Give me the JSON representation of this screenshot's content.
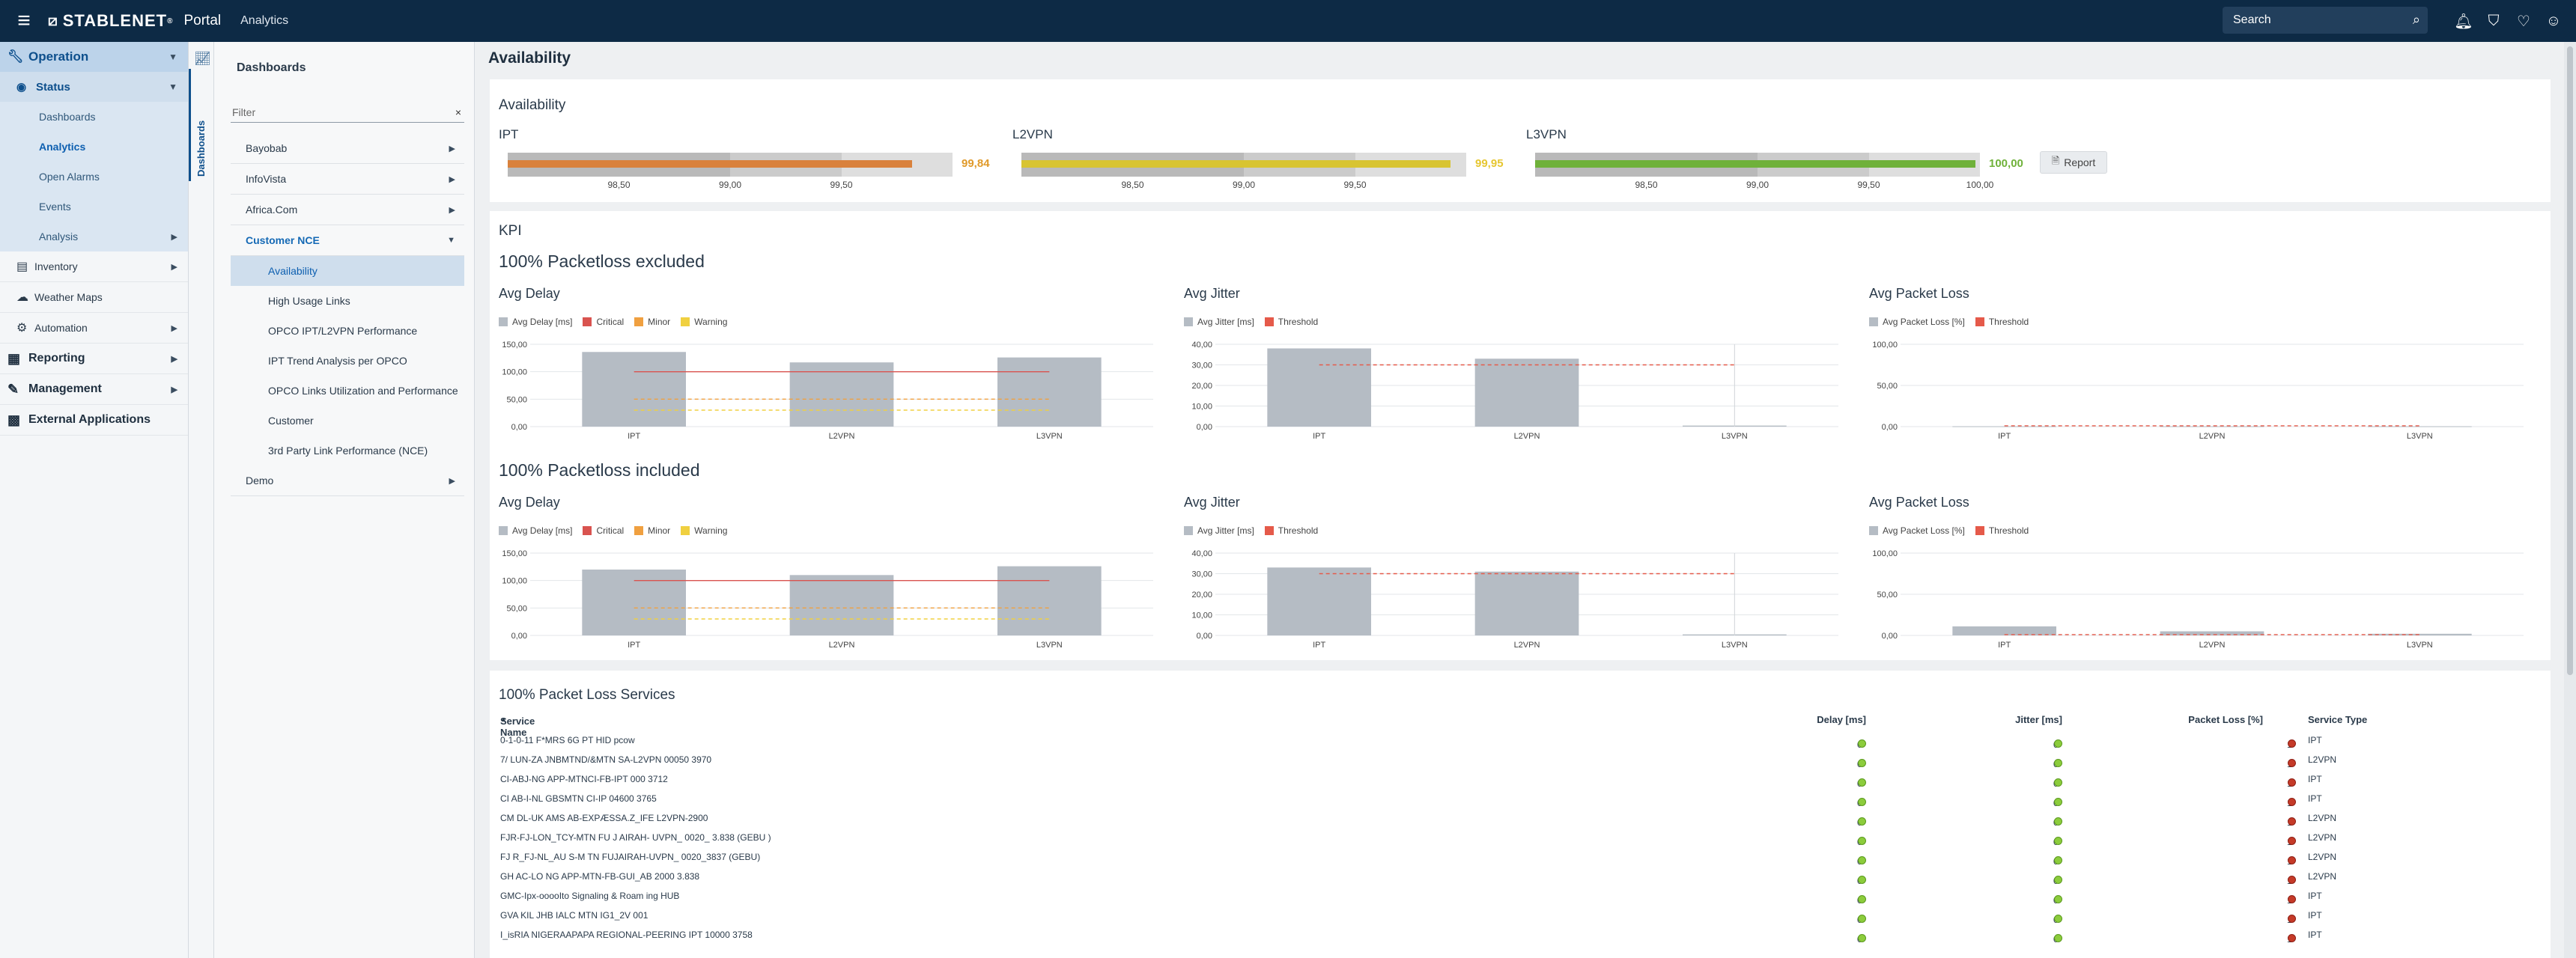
{
  "topbar": {
    "brand": "STABLENET",
    "portal": "Portal",
    "app": "Analytics",
    "search_placeholder": "Search"
  },
  "nav": {
    "operation": "Operation",
    "status": "Status",
    "status_items": [
      {
        "label": "Dashboards",
        "active": false
      },
      {
        "label": "Analytics",
        "active": true
      },
      {
        "label": "Open Alarms",
        "active": false
      },
      {
        "label": "Events",
        "active": false
      },
      {
        "label": "Analysis",
        "active": false
      }
    ],
    "inventory": "Inventory",
    "weather_maps": "Weather Maps",
    "automation": "Automation",
    "reporting": "Reporting",
    "management": "Management",
    "external": "External Applications"
  },
  "vtab": {
    "label": "Dashboards"
  },
  "dashboards": {
    "title": "Dashboards",
    "filter_placeholder": "Filter",
    "groups": [
      "Bayobab",
      "InfoVista",
      "Africa.Com",
      "Customer NCE"
    ],
    "customer_nce_items": [
      "Availability",
      "High Usage Links",
      "OPCO IPT/L2VPN Performance",
      "IPT Trend Analysis per OPCO",
      "OPCO Links Utilization and Performance",
      "Customer",
      "3rd Party Link Performance (NCE)"
    ],
    "demo": "Demo"
  },
  "page": {
    "title": "Availability"
  },
  "availability": {
    "title": "Availability",
    "report_label": "Report",
    "tick_labels": [
      "98,50",
      "99,00",
      "99,50"
    ],
    "tick_labels_l3": [
      "98,50",
      "99,00",
      "99,50",
      "100,00"
    ],
    "items": [
      {
        "label": "IPT",
        "value": 99.84,
        "value_text": "99,84",
        "color": "#d9813c",
        "text_color": "#e09a2a"
      },
      {
        "label": "L2VPN",
        "value": 99.95,
        "value_text": "99,95",
        "color": "#d8c432",
        "text_color": "#e6c630"
      },
      {
        "label": "L3VPN",
        "value": 100.0,
        "value_text": "100,00",
        "color": "#6fb13a",
        "text_color": "#6fb13a"
      }
    ]
  },
  "kpi": {
    "title": "KPI",
    "excluded": "100% Packetloss excluded",
    "included": "100% Packetloss included",
    "delay_title": "Avg Delay",
    "jitter_title": "Avg Jitter",
    "loss_title": "Avg Packet Loss",
    "delay_legend": [
      "Avg Delay [ms]",
      "Critical",
      "Minor",
      "Warning"
    ],
    "jitter_legend": [
      "Avg Jitter [ms]",
      "Threshold"
    ],
    "loss_legend": [
      "Avg Packet Loss [%]",
      "Threshold"
    ],
    "colors": {
      "bar": "#b5bcc4",
      "critical": "#d9534f",
      "minor": "#f0a040",
      "warning": "#f0d040",
      "threshold": "#e55a4a"
    }
  },
  "chart_data": [
    {
      "type": "bar",
      "title": "Avg Delay",
      "group": "100% Packetloss excluded",
      "categories": [
        "IPT",
        "L2VPN",
        "L3VPN"
      ],
      "values": [
        136,
        117,
        126
      ],
      "thresholds": {
        "Critical": 100,
        "Minor": 50,
        "Warning": 30
      },
      "ylim": [
        0,
        150
      ],
      "yticks": [
        "0,00",
        "50,00",
        "100,00",
        "150,00"
      ]
    },
    {
      "type": "bar",
      "title": "Avg Jitter",
      "group": "100% Packetloss excluded",
      "categories": [
        "IPT",
        "L2VPN",
        "L3VPN"
      ],
      "values": [
        38,
        33,
        0.5
      ],
      "thresholds": {
        "Threshold": 30
      },
      "ylim": [
        0,
        40
      ],
      "yticks": [
        "0,00",
        "10,00",
        "20,00",
        "30,00",
        "40,00"
      ]
    },
    {
      "type": "bar",
      "title": "Avg Packet Loss",
      "group": "100% Packetloss excluded",
      "categories": [
        "IPT",
        "L2VPN",
        "L3VPN"
      ],
      "values": [
        0.4,
        0.4,
        0.4
      ],
      "thresholds": {
        "Threshold": 1
      },
      "ylim": [
        0,
        100
      ],
      "yticks": [
        "0,00",
        "50,00",
        "100,00"
      ]
    },
    {
      "type": "bar",
      "title": "Avg Delay",
      "group": "100% Packetloss included",
      "categories": [
        "IPT",
        "L2VPN",
        "L3VPN"
      ],
      "values": [
        120,
        110,
        126
      ],
      "thresholds": {
        "Critical": 100,
        "Minor": 50,
        "Warning": 30
      },
      "ylim": [
        0,
        150
      ],
      "yticks": [
        "0,00",
        "50,00",
        "100,00",
        "150,00"
      ]
    },
    {
      "type": "bar",
      "title": "Avg Jitter",
      "group": "100% Packetloss included",
      "categories": [
        "IPT",
        "L2VPN",
        "L3VPN"
      ],
      "values": [
        33,
        31,
        0.5
      ],
      "thresholds": {
        "Threshold": 30
      },
      "ylim": [
        0,
        40
      ],
      "yticks": [
        "0,00",
        "10,00",
        "20,00",
        "30,00",
        "40,00"
      ]
    },
    {
      "type": "bar",
      "title": "Avg Packet Loss",
      "group": "100% Packetloss included",
      "categories": [
        "IPT",
        "L2VPN",
        "L3VPN"
      ],
      "values": [
        11,
        5,
        2
      ],
      "thresholds": {
        "Threshold": 1
      },
      "ylim": [
        0,
        100
      ],
      "yticks": [
        "0,00",
        "50,00",
        "100,00"
      ]
    }
  ],
  "services": {
    "title": "100% Packet Loss Services",
    "columns": [
      "Service Name",
      "Delay [ms]",
      "Jitter [ms]",
      "Packet Loss [%]",
      "Service Type"
    ],
    "rows": [
      {
        "name": "0-1-0-11 F*MRS 6G PT HID pcow",
        "delay": "0",
        "jitter": "0",
        "loss": "1",
        "type": "IPT"
      },
      {
        "name": "7/ LUN-ZA JNBMTND/&MTN SA-L2VPN 00050 3970",
        "delay": "0",
        "jitter": "0",
        "loss": "1",
        "type": "L2VPN"
      },
      {
        "name": "CI-ABJ-NG APP-MTNCI-FB-IPT 000 3712",
        "delay": "0",
        "jitter": "0",
        "loss": "1",
        "type": "IPT"
      },
      {
        "name": "CI AB-I-NL GBSMTN CI-IP 04600 3765",
        "delay": "0",
        "jitter": "0",
        "loss": "1",
        "type": "IPT"
      },
      {
        "name": "CM DL-UK AMS AB-EXPÆSSA.Z_IFE L2VPN-2900",
        "delay": "0",
        "jitter": "0",
        "loss": "1",
        "type": "L2VPN"
      },
      {
        "name": "FJR-FJ-LON_TCY-MTN FU J AIRAH- UVPN_ 0020_ 3.838 (GEBU )",
        "delay": "0",
        "jitter": "0",
        "loss": "1",
        "type": "L2VPN"
      },
      {
        "name": "FJ R_FJ-NL_AU S-M TN FUJAIRAH-UVPN_ 0020_3837 (GEBU)",
        "delay": "0",
        "jitter": "0",
        "loss": "1",
        "type": "L2VPN"
      },
      {
        "name": "GH AC-LO NG APP-MTN-FB-GUI_AB 2000 3.838",
        "delay": "0",
        "jitter": "0",
        "loss": "1",
        "type": "L2VPN"
      },
      {
        "name": "GMC-Ipx-ooooIto Signaling & Roam ing HUB",
        "delay": "0",
        "jitter": "0",
        "loss": "1",
        "type": "IPT"
      },
      {
        "name": "GVA KIL JHB IALC MTN IG1_2V 001",
        "delay": "0",
        "jitter": "0",
        "loss": "1",
        "type": "IPT"
      },
      {
        "name": "I_isRIA NIGERAAPAPA REGIONAL-PEERING IPT 10000 3758",
        "delay": "0",
        "jitter": "0",
        "loss": "1",
        "type": "IPT"
      }
    ]
  }
}
